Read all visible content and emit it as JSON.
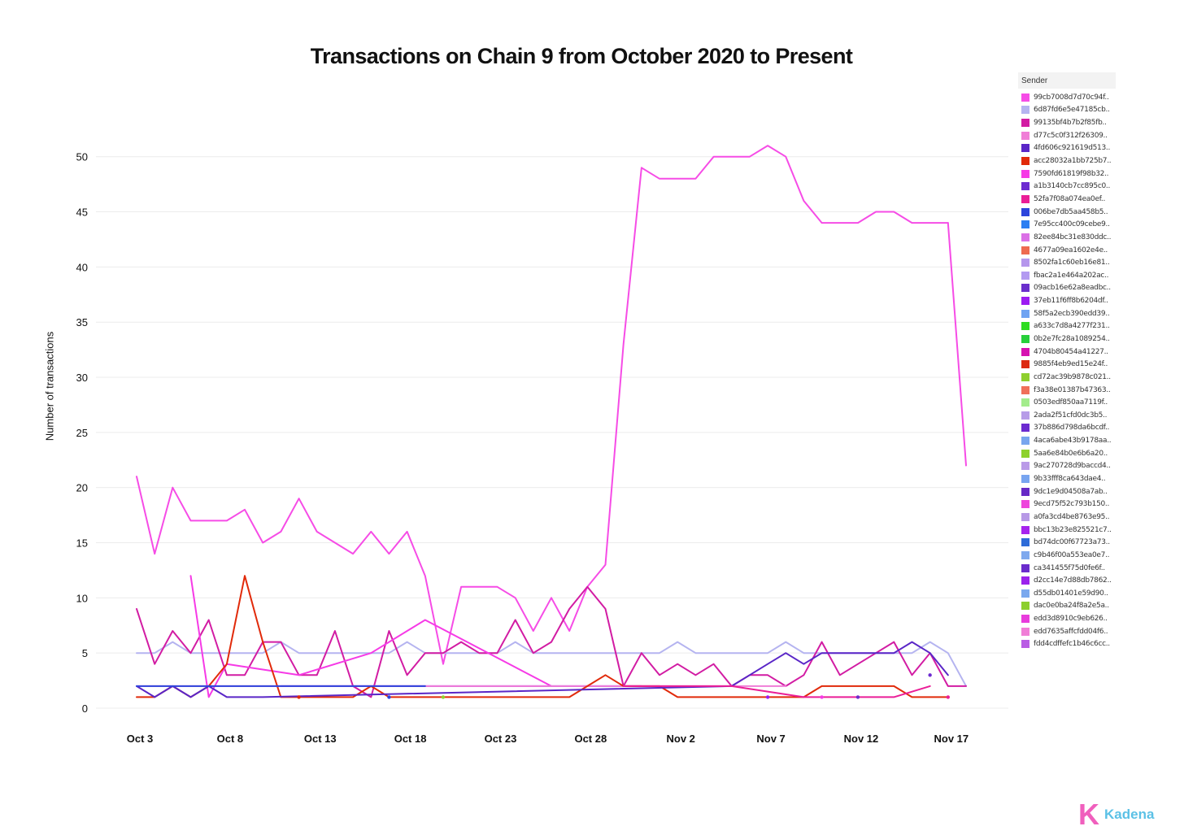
{
  "chart_data": {
    "type": "line",
    "title": "Transactions on Chain 9 from October 2020 to Present",
    "xlabel": "",
    "ylabel": "Number of transactions",
    "legend_title": "Sender",
    "legend_position": "right",
    "grid": true,
    "xlim": [
      "2020-10-03",
      "2020-11-18"
    ],
    "ylim": [
      0,
      53
    ],
    "x_ticks": [
      "Oct 3",
      "Oct 8",
      "Oct 13",
      "Oct 18",
      "Oct 23",
      "Oct 28",
      "Nov 2",
      "Nov 7",
      "Nov 12",
      "Nov 17"
    ],
    "x_tick_dates": [
      "2020-10-03",
      "2020-10-08",
      "2020-10-13",
      "2020-10-18",
      "2020-10-23",
      "2020-10-28",
      "2020-11-02",
      "2020-11-07",
      "2020-11-12",
      "2020-11-17"
    ],
    "y_ticks": [
      0,
      5,
      10,
      15,
      20,
      25,
      30,
      35,
      40,
      45,
      50
    ],
    "legend": [
      {
        "label": "99cb7008d7d70c94f..",
        "color": "#f64ce6"
      },
      {
        "label": "6d87fd6e5e47185cb..",
        "color": "#b5b4f0"
      },
      {
        "label": "99135bf4b7b2f85fb..",
        "color": "#d21ca3"
      },
      {
        "label": "d77c5c0f312f26309..",
        "color": "#f07ed7"
      },
      {
        "label": "4fd606c921619d513..",
        "color": "#5a26c7"
      },
      {
        "label": "acc28032a1bb725b7..",
        "color": "#e12a0a"
      },
      {
        "label": "7590fd61819f98b32..",
        "color": "#f63ae6"
      },
      {
        "label": "a1b3140cb7cc895c0..",
        "color": "#6d2bd1"
      },
      {
        "label": "52fa7f08a074ea0ef..",
        "color": "#ea1e97"
      },
      {
        "label": "006be7db5aa458b5..",
        "color": "#2d45dc"
      },
      {
        "label": "7e95cc400c09cebe9..",
        "color": "#2b7ff2"
      },
      {
        "label": "82ee84bc31e830ddc..",
        "color": "#db70e6"
      },
      {
        "label": "4677a09ea1602e4e..",
        "color": "#ee6a50"
      },
      {
        "label": "8502fa1c60eb16e81..",
        "color": "#b596ec"
      },
      {
        "label": "fbac2a1e464a202ac..",
        "color": "#b39af1"
      },
      {
        "label": "09acb16e62a8eadbc..",
        "color": "#6a2fcc"
      },
      {
        "label": "37eb11f6ff8b6204df..",
        "color": "#9c1cf2"
      },
      {
        "label": "58f5a2ecb390edd39..",
        "color": "#6fa3f2"
      },
      {
        "label": "a633c7d8a4277f231..",
        "color": "#2fdc22"
      },
      {
        "label": "0b2e7fc28a1089254..",
        "color": "#27cf3a"
      },
      {
        "label": "4704b80454a41227..",
        "color": "#d612b1"
      },
      {
        "label": "9885f4eb9ed15e24f..",
        "color": "#dc2a10"
      },
      {
        "label": "cd72ac39b9878c021..",
        "color": "#8fcf2e"
      },
      {
        "label": "f3a38e01387b47363..",
        "color": "#f0705a"
      },
      {
        "label": "0503edf850aa7119f..",
        "color": "#a3ec8c"
      },
      {
        "label": "2ada2f51cfd0dc3b5..",
        "color": "#b79ce8"
      },
      {
        "label": "37b886d798da6bcdf..",
        "color": "#6c2bd0"
      },
      {
        "label": "4aca6abe43b9178aa..",
        "color": "#79a6ee"
      },
      {
        "label": "5aa6e84b0e6b6a20..",
        "color": "#8ed12c"
      },
      {
        "label": "9ac270728d9baccd4..",
        "color": "#ba9ae8"
      },
      {
        "label": "9b33fff8ca643dae4..",
        "color": "#78a5f0"
      },
      {
        "label": "9dc1e9d04508a7ab..",
        "color": "#6729c6"
      },
      {
        "label": "9ecd75f52c793b150..",
        "color": "#ee45dc"
      },
      {
        "label": "a0fa3cd4be8763e95..",
        "color": "#b799e6"
      },
      {
        "label": "bbc13b23e825521c7..",
        "color": "#a624ee"
      },
      {
        "label": "bd74dc00f67723a73..",
        "color": "#2e6cd8"
      },
      {
        "label": "c9b46f00a553ea0e7..",
        "color": "#7fa9ee"
      },
      {
        "label": "ca341455f75d0fe6f..",
        "color": "#6a2ccc"
      },
      {
        "label": "d2cc14e7d88db7862..",
        "color": "#9b22ec"
      },
      {
        "label": "d55db01401e59d90..",
        "color": "#7aa8ee"
      },
      {
        "label": "dac0e0ba24f8a2e5a..",
        "color": "#8ccf2e"
      },
      {
        "label": "edd3d8910c9eb626..",
        "color": "#e83cdc"
      },
      {
        "label": "edd7635affcfdd04f6..",
        "color": "#f07ed7"
      },
      {
        "label": "fdd4cdffefc1b46c6cc..",
        "color": "#b95ce4"
      }
    ],
    "series": [
      {
        "legend_index": 0,
        "x": [
          "2020-10-03",
          "2020-10-04",
          "2020-10-05",
          "2020-10-06",
          "2020-10-07",
          "2020-10-08",
          "2020-10-09",
          "2020-10-10",
          "2020-10-11",
          "2020-10-12",
          "2020-10-13",
          "2020-10-14",
          "2020-10-15",
          "2020-10-16",
          "2020-10-17",
          "2020-10-18",
          "2020-10-19",
          "2020-10-20",
          "2020-10-21",
          "2020-10-22",
          "2020-10-23",
          "2020-10-24",
          "2020-10-25",
          "2020-10-26",
          "2020-10-27",
          "2020-10-28",
          "2020-10-29",
          "2020-10-30",
          "2020-10-31",
          "2020-11-01",
          "2020-11-02",
          "2020-11-03",
          "2020-11-04",
          "2020-11-05",
          "2020-11-06",
          "2020-11-07",
          "2020-11-08",
          "2020-11-09",
          "2020-11-10",
          "2020-11-11",
          "2020-11-12",
          "2020-11-13",
          "2020-11-14",
          "2020-11-15",
          "2020-11-16",
          "2020-11-17"
        ],
        "y": [
          21,
          14,
          20,
          17,
          17,
          17,
          18,
          15,
          16,
          19,
          16,
          15,
          14,
          16,
          14,
          16,
          12,
          4,
          11,
          11,
          11,
          10,
          7,
          10,
          7,
          11,
          13,
          33,
          49,
          48,
          48,
          48,
          50,
          50,
          50,
          51,
          50,
          46,
          44,
          44,
          44,
          45,
          45,
          44,
          44,
          44
        ]
      },
      {
        "legend_index": 0,
        "x": [
          "2020-11-17",
          "2020-11-18"
        ],
        "y": [
          44,
          22
        ]
      },
      {
        "legend_index": 1,
        "x": [
          "2020-10-03",
          "2020-10-04",
          "2020-10-05",
          "2020-10-06",
          "2020-10-07",
          "2020-10-08",
          "2020-10-09",
          "2020-10-10",
          "2020-10-11",
          "2020-10-12",
          "2020-10-13",
          "2020-10-14",
          "2020-10-15",
          "2020-10-16",
          "2020-10-17",
          "2020-10-18",
          "2020-10-19",
          "2020-10-20",
          "2020-10-21",
          "2020-10-22",
          "2020-10-23",
          "2020-10-24",
          "2020-10-25",
          "2020-10-26",
          "2020-10-27",
          "2020-10-28",
          "2020-10-29",
          "2020-10-30",
          "2020-10-31",
          "2020-11-01",
          "2020-11-02",
          "2020-11-03",
          "2020-11-04",
          "2020-11-05",
          "2020-11-06",
          "2020-11-07",
          "2020-11-08",
          "2020-11-09",
          "2020-11-10",
          "2020-11-11",
          "2020-11-12",
          "2020-11-13",
          "2020-11-14",
          "2020-11-15",
          "2020-11-16",
          "2020-11-17",
          "2020-11-18"
        ],
        "y": [
          5,
          5,
          6,
          5,
          5,
          5,
          5,
          5,
          6,
          5,
          5,
          5,
          5,
          5,
          5,
          6,
          5,
          5,
          5,
          5,
          5,
          6,
          5,
          5,
          5,
          5,
          5,
          5,
          5,
          5,
          6,
          5,
          5,
          5,
          5,
          5,
          6,
          5,
          5,
          5,
          5,
          5,
          5,
          5,
          6,
          5,
          2
        ]
      },
      {
        "legend_index": 2,
        "x": [
          "2020-10-03",
          "2020-10-04",
          "2020-10-05",
          "2020-10-06",
          "2020-10-07",
          "2020-10-08",
          "2020-10-09",
          "2020-10-10",
          "2020-10-11",
          "2020-10-12",
          "2020-10-13",
          "2020-10-14",
          "2020-10-15",
          "2020-10-16",
          "2020-10-17",
          "2020-10-18",
          "2020-10-19",
          "2020-10-20",
          "2020-10-21",
          "2020-10-22",
          "2020-10-23",
          "2020-10-24",
          "2020-10-25",
          "2020-10-26",
          "2020-10-27",
          "2020-10-28",
          "2020-10-29",
          "2020-10-30",
          "2020-10-31",
          "2020-11-01",
          "2020-11-02",
          "2020-11-03",
          "2020-11-04",
          "2020-11-05",
          "2020-11-06",
          "2020-11-07",
          "2020-11-08",
          "2020-11-09",
          "2020-11-10",
          "2020-11-11",
          "2020-11-12",
          "2020-11-13",
          "2020-11-14",
          "2020-11-15",
          "2020-11-16",
          "2020-11-17",
          "2020-11-18"
        ],
        "y": [
          9,
          4,
          7,
          5,
          8,
          3,
          3,
          6,
          6,
          3,
          3,
          7,
          2,
          1,
          7,
          3,
          5,
          5,
          6,
          5,
          5,
          8,
          5,
          6,
          9,
          11,
          9,
          2,
          5,
          3,
          4,
          3,
          4,
          2,
          3,
          3,
          2,
          3,
          6,
          3,
          4,
          5,
          6,
          3,
          5,
          2,
          2
        ]
      },
      {
        "legend_index": 6,
        "x": [
          "2020-10-06",
          "2020-10-07",
          "2020-10-08",
          "2020-10-12",
          "2020-10-16",
          "2020-10-19",
          "2020-10-26"
        ],
        "y": [
          12,
          1,
          4,
          3,
          5,
          8,
          2
        ]
      },
      {
        "legend_index": 16,
        "x": [
          "2020-10-11",
          "2020-10-13",
          "2020-10-16",
          "2020-10-19",
          "2020-10-22",
          "2020-10-26",
          "2020-10-27",
          "2020-10-28",
          "2020-10-31"
        ],
        "y": [
          2,
          2,
          2,
          2,
          2,
          2,
          2,
          2,
          2
        ]
      },
      {
        "legend_index": 3,
        "x": [
          "2020-10-03",
          "2020-10-06",
          "2020-10-10",
          "2020-10-15",
          "2020-10-20",
          "2020-10-25",
          "2020-10-30",
          "2020-11-04",
          "2020-11-08"
        ],
        "y": [
          2,
          2,
          2,
          2,
          2,
          2,
          2,
          2,
          2
        ]
      },
      {
        "legend_index": 5,
        "x": [
          "2020-10-03",
          "2020-10-04",
          "2020-10-05",
          "2020-10-06",
          "2020-10-07",
          "2020-10-08",
          "2020-10-09",
          "2020-10-10",
          "2020-10-11",
          "2020-10-12",
          "2020-10-13",
          "2020-10-14",
          "2020-10-15",
          "2020-10-16",
          "2020-10-17",
          "2020-10-18",
          "2020-10-19",
          "2020-10-20",
          "2020-10-21",
          "2020-10-22",
          "2020-10-23",
          "2020-10-24",
          "2020-10-25",
          "2020-10-26",
          "2020-10-27",
          "2020-10-28",
          "2020-10-29",
          "2020-10-30",
          "2020-10-31",
          "2020-11-01",
          "2020-11-02",
          "2020-11-03",
          "2020-11-04",
          "2020-11-05",
          "2020-11-06",
          "2020-11-07",
          "2020-11-08",
          "2020-11-09",
          "2020-11-10",
          "2020-11-11",
          "2020-11-12",
          "2020-11-13",
          "2020-11-14",
          "2020-11-15",
          "2020-11-16",
          "2020-11-17"
        ],
        "y": [
          1,
          1,
          2,
          1,
          2,
          4,
          12,
          6,
          1,
          1,
          1,
          1,
          1,
          2,
          1,
          1,
          1,
          1,
          1,
          1,
          1,
          1,
          1,
          1,
          1,
          2,
          3,
          2,
          2,
          2,
          1,
          1,
          1,
          1,
          1,
          1,
          1,
          1,
          2,
          2,
          2,
          2,
          2,
          1,
          1,
          1
        ]
      },
      {
        "legend_index": 4,
        "x": [
          "2020-10-03",
          "2020-10-04",
          "2020-10-05",
          "2020-10-06",
          "2020-10-07",
          "2020-10-08",
          "2020-10-09",
          "2020-10-10",
          "2020-11-05",
          "2020-11-06",
          "2020-11-07",
          "2020-11-08",
          "2020-11-09",
          "2020-11-10",
          "2020-11-11",
          "2020-11-12",
          "2020-11-13",
          "2020-11-14",
          "2020-11-15",
          "2020-11-16",
          "2020-11-17"
        ],
        "y": [
          2,
          1,
          2,
          1,
          2,
          1,
          1,
          1,
          2,
          3,
          4,
          5,
          4,
          5,
          5,
          5,
          5,
          5,
          6,
          5,
          3
        ]
      },
      {
        "legend_index": 9,
        "x": [
          "2020-10-03",
          "2020-10-08",
          "2020-10-13",
          "2020-10-18",
          "2020-10-19"
        ],
        "y": [
          2,
          2,
          2,
          2,
          2
        ]
      },
      {
        "legend_index": 8,
        "x": [
          "2020-10-30",
          "2020-11-02",
          "2020-11-05",
          "2020-11-09",
          "2020-11-12",
          "2020-11-14",
          "2020-11-16"
        ],
        "y": [
          2,
          2,
          2,
          1,
          1,
          1,
          2
        ]
      }
    ],
    "points": [
      {
        "x": "2020-10-12",
        "y": 1,
        "legend_index": 5
      },
      {
        "x": "2020-10-17",
        "y": 1,
        "legend_index": 9
      },
      {
        "x": "2020-10-20",
        "y": 1,
        "legend_index": 22
      },
      {
        "x": "2020-11-07",
        "y": 1,
        "legend_index": 16
      },
      {
        "x": "2020-11-10",
        "y": 1,
        "legend_index": 6
      },
      {
        "x": "2020-11-12",
        "y": 1,
        "legend_index": 37
      },
      {
        "x": "2020-11-16",
        "y": 3,
        "legend_index": 7
      },
      {
        "x": "2020-11-17",
        "y": 1,
        "legend_index": 8
      }
    ]
  },
  "branding": {
    "logo_mark": "K",
    "logo_text": "Kadena"
  }
}
